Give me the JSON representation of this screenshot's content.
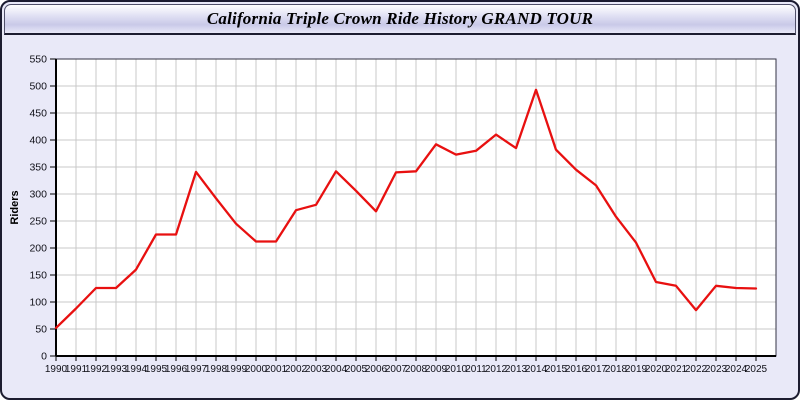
{
  "window": {
    "title": "California Triple Crown Ride History GRAND TOUR"
  },
  "colors": {
    "line": "#e81010",
    "window_bg": "#e9e9f8",
    "border": "#1c1c30",
    "plot_bg": "#ffffff",
    "grid": "#c9c9c9",
    "tick_text": "#101018"
  },
  "chart_data": {
    "type": "line",
    "title": "California Triple Crown Ride History GRAND TOUR",
    "xlabel": "",
    "ylabel": "Riders",
    "x": [
      1990,
      1991,
      1992,
      1993,
      1994,
      1995,
      1996,
      1997,
      1998,
      1999,
      2000,
      2001,
      2002,
      2003,
      2004,
      2005,
      2006,
      2007,
      2008,
      2009,
      2010,
      2011,
      2012,
      2013,
      2014,
      2015,
      2016,
      2017,
      2018,
      2019,
      2020,
      2021,
      2022,
      2023,
      2024,
      2025
    ],
    "series": [
      {
        "name": "Riders",
        "color": "#e81010",
        "values": [
          52,
          88,
          126,
          126,
          160,
          225,
          225,
          341,
          292,
          245,
          212,
          212,
          270,
          280,
          342,
          306,
          268,
          340,
          342,
          392,
          373,
          380,
          410,
          385,
          493,
          382,
          345,
          316,
          258,
          210,
          137,
          130,
          85,
          130,
          126,
          125
        ]
      }
    ],
    "ylim": [
      0,
      550
    ],
    "ytick_step": 50,
    "xlim": [
      1990,
      2026
    ],
    "grid": true,
    "legend": "none"
  }
}
